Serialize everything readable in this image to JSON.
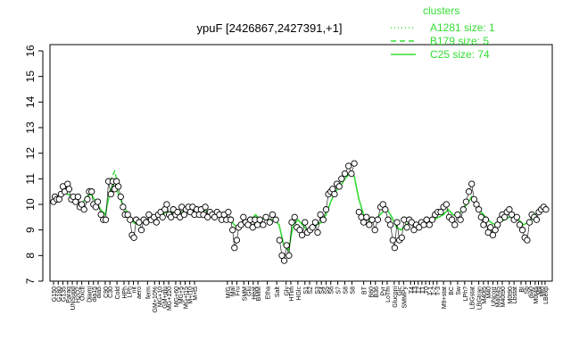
{
  "chart_data": {
    "type": "line",
    "title": "ypuF [2426867,2427391,+1]",
    "ylim": [
      7,
      16
    ],
    "yticks": [
      7,
      8,
      9,
      10,
      11,
      12,
      13,
      14,
      15,
      16
    ],
    "grid": false,
    "legend": {
      "title": "clusters",
      "placement": "top-right",
      "entries": [
        {
          "label": "A1281 size: 1",
          "style": "dotted"
        },
        {
          "label": "B179 size: 5",
          "style": "dashed"
        },
        {
          "label": "C25 size: 74",
          "style": "solid"
        }
      ]
    },
    "colors": {
      "line": "#33dd33",
      "points": "#000000",
      "fill": "#ffffff"
    },
    "x_labels": [
      {
        "text": "G150",
        "x": 1
      },
      {
        "text": "G180",
        "x": 2
      },
      {
        "text": "G135",
        "x": 3
      },
      {
        "text": "Paraq",
        "x": 4
      },
      {
        "text": "UNSupp",
        "x": 5
      },
      {
        "text": "H2O2",
        "x": 6
      },
      {
        "text": "Oxctl",
        "x": 7
      },
      {
        "text": "Diami",
        "x": 8.5
      },
      {
        "text": "dia15",
        "x": 9.5
      },
      {
        "text": "dia5",
        "x": 10.5
      },
      {
        "text": "C90",
        "x": 12
      },
      {
        "text": "C30",
        "x": 13
      },
      {
        "text": "Cold",
        "x": 14.5
      },
      {
        "text": "HPh",
        "x": 16
      },
      {
        "text": "LPh",
        "x": 17
      },
      {
        "text": "nit",
        "x": 18
      },
      {
        "text": "aero",
        "x": 19
      },
      {
        "text": "ferm",
        "x": 21
      },
      {
        "text": "GM+10%",
        "x": 22.5
      },
      {
        "text": "MG+10",
        "x": 23.5
      },
      {
        "text": "GM+glu",
        "x": 24.5
      },
      {
        "text": "MG+120",
        "x": 25.5
      },
      {
        "text": "MG+60",
        "x": 27
      },
      {
        "text": "MG+5",
        "x": 28
      },
      {
        "text": "MG+t15",
        "x": 29
      },
      {
        "text": "M+t10",
        "x": 30
      },
      {
        "text": "M+t5",
        "x": 31
      },
      {
        "text": "M/G",
        "x": 38
      },
      {
        "text": "Mal",
        "x": 39
      },
      {
        "text": "Fru",
        "x": 40
      },
      {
        "text": "SMM",
        "x": 41.5
      },
      {
        "text": "Glu",
        "x": 42.5
      },
      {
        "text": "Heat",
        "x": 43.5
      },
      {
        "text": "BMM",
        "x": 44.5
      },
      {
        "text": "Etha",
        "x": 46.5
      },
      {
        "text": "Salt",
        "x": 48.5
      },
      {
        "text": "Gly",
        "x": 50.5
      },
      {
        "text": "HTim",
        "x": 51.5
      },
      {
        "text": "HGlc",
        "x": 53
      },
      {
        "text": "S1",
        "x": 54.5
      },
      {
        "text": "S2",
        "x": 55.5
      },
      {
        "text": "S3",
        "x": 57
      },
      {
        "text": "S4",
        "x": 58
      },
      {
        "text": "S5",
        "x": 59
      },
      {
        "text": "S6",
        "x": 60
      },
      {
        "text": "S7",
        "x": 61.5
      },
      {
        "text": "S8",
        "x": 63
      },
      {
        "text": "S8",
        "x": 64.5
      },
      {
        "text": "BT",
        "x": 67
      },
      {
        "text": "B60",
        "x": 68.5
      },
      {
        "text": "B36",
        "x": 69.5
      },
      {
        "text": "Pyr",
        "x": 71
      },
      {
        "text": "LoTm",
        "x": 72
      },
      {
        "text": "Gluconi",
        "x": 73.5
      },
      {
        "text": "Glc",
        "x": 74.5
      },
      {
        "text": "SMMPy",
        "x": 75.5
      },
      {
        "text": "T4",
        "x": 77
      },
      {
        "text": "T3",
        "x": 77.8
      },
      {
        "text": "T2",
        "x": 78.6
      },
      {
        "text": "T1",
        "x": 79.4
      },
      {
        "text": "T0",
        "x": 80.2
      },
      {
        "text": "T-1",
        "x": 81
      },
      {
        "text": "T-2",
        "x": 81.8
      },
      {
        "text": "T-3",
        "x": 82.6
      },
      {
        "text": "M9+stat",
        "x": 84
      },
      {
        "text": "BC",
        "x": 85.5
      },
      {
        "text": "Sw",
        "x": 87
      },
      {
        "text": "LPh?",
        "x": 88.5
      },
      {
        "text": "LBGstat",
        "x": 90
      },
      {
        "text": "LBGtran",
        "x": 91.5
      },
      {
        "text": "M40t5",
        "x": 92.5
      },
      {
        "text": "M40",
        "x": 93.5
      },
      {
        "text": "UNcorr",
        "x": 94.5
      },
      {
        "text": "M40t45",
        "x": 95.5
      },
      {
        "text": "M40t90",
        "x": 96.5
      },
      {
        "text": "M0t90",
        "x": 98
      },
      {
        "text": "Lbstat",
        "x": 99
      },
      {
        "text": "BI",
        "x": 100.5
      },
      {
        "text": "Sb",
        "x": 101.5
      },
      {
        "text": "dia0",
        "x": 102.5
      },
      {
        "text": "M0t45",
        "x": 103.5
      },
      {
        "text": "M9",
        "x": 104.2
      },
      {
        "text": "Mt0",
        "x": 104.9
      },
      {
        "text": "LBexp",
        "x": 105.6
      }
    ],
    "cluster_line": [
      [
        1,
        10.2
      ],
      [
        2,
        10.3
      ],
      [
        3,
        10.5
      ],
      [
        4,
        10.4
      ],
      [
        5,
        10.3
      ],
      [
        6,
        10.1
      ],
      [
        7,
        10.0
      ],
      [
        8,
        10.3
      ],
      [
        9,
        10.4
      ],
      [
        10,
        10.1
      ],
      [
        11,
        9.8
      ],
      [
        12,
        9.6
      ],
      [
        13,
        10.5
      ],
      [
        14,
        10.9
      ],
      [
        15,
        10.3
      ],
      [
        16,
        9.9
      ],
      [
        17,
        9.6
      ],
      [
        18,
        9.3
      ],
      [
        19,
        9.2
      ],
      [
        20,
        9.3
      ],
      [
        21,
        9.4
      ],
      [
        22,
        9.5
      ],
      [
        23,
        9.5
      ],
      [
        24,
        9.6
      ],
      [
        25,
        9.7
      ],
      [
        26,
        9.7
      ],
      [
        27,
        9.6
      ],
      [
        28,
        9.7
      ],
      [
        29,
        9.7
      ],
      [
        30,
        9.7
      ],
      [
        31,
        9.7
      ],
      [
        32,
        9.7
      ],
      [
        33,
        9.8
      ],
      [
        34,
        9.7
      ],
      [
        35,
        9.6
      ],
      [
        36,
        9.6
      ],
      [
        37,
        9.5
      ],
      [
        38,
        9.4
      ],
      [
        39,
        9.3
      ],
      [
        40,
        9.1
      ],
      [
        41,
        9.3
      ],
      [
        42,
        9.3
      ],
      [
        43,
        9.4
      ],
      [
        44,
        9.6
      ],
      [
        45,
        9.4
      ],
      [
        46,
        9.5
      ],
      [
        47,
        9.4
      ],
      [
        48,
        9.4
      ],
      [
        49,
        9.2
      ],
      [
        50,
        8.4
      ],
      [
        51,
        8.2
      ],
      [
        52,
        9.2
      ],
      [
        53,
        9.4
      ],
      [
        54,
        9.2
      ],
      [
        55,
        9.0
      ],
      [
        56,
        9.1
      ],
      [
        57,
        9.2
      ],
      [
        58,
        9.3
      ],
      [
        59,
        9.6
      ],
      [
        60,
        10.1
      ],
      [
        61,
        10.5
      ],
      [
        62,
        10.7
      ],
      [
        63,
        11.0
      ],
      [
        64,
        11.2
      ],
      [
        65,
        11.1
      ],
      [
        66,
        10.2
      ],
      [
        67,
        9.6
      ],
      [
        68,
        9.4
      ],
      [
        69,
        9.3
      ],
      [
        70,
        9.5
      ],
      [
        71,
        9.7
      ],
      [
        72,
        9.8
      ],
      [
        73,
        9.5
      ],
      [
        74,
        9.1
      ],
      [
        75,
        9.0
      ],
      [
        76,
        9.2
      ],
      [
        77,
        9.3
      ],
      [
        78,
        9.2
      ],
      [
        79,
        9.2
      ],
      [
        80,
        9.3
      ],
      [
        81,
        9.3
      ],
      [
        82,
        9.4
      ],
      [
        83,
        9.5
      ],
      [
        84,
        9.6
      ],
      [
        85,
        9.8
      ],
      [
        86,
        9.6
      ],
      [
        87,
        9.5
      ],
      [
        88,
        9.8
      ],
      [
        89,
        10.0
      ],
      [
        90,
        10.3
      ],
      [
        91,
        10.0
      ],
      [
        92,
        9.7
      ],
      [
        93,
        9.5
      ],
      [
        94,
        9.3
      ],
      [
        95,
        9.2
      ],
      [
        96,
        9.3
      ],
      [
        97,
        9.4
      ],
      [
        98,
        9.5
      ],
      [
        99,
        9.6
      ],
      [
        100,
        9.4
      ],
      [
        101,
        9.2
      ],
      [
        102,
        9.3
      ],
      [
        103,
        9.5
      ],
      [
        104,
        9.7
      ],
      [
        105,
        9.8
      ],
      [
        106,
        9.9
      ]
    ],
    "cluster_line_b": [
      [
        13,
        10.9
      ],
      [
        14,
        11.3
      ],
      [
        15,
        10.6
      ]
    ],
    "points": [
      [
        1,
        10.1
      ],
      [
        1.3,
        10.3
      ],
      [
        1.7,
        10.2
      ],
      [
        2.2,
        10.2
      ],
      [
        2.6,
        10.4
      ],
      [
        3,
        10.7
      ],
      [
        3.4,
        10.5
      ],
      [
        4,
        10.8
      ],
      [
        4.3,
        10.6
      ],
      [
        4.8,
        10.2
      ],
      [
        5.2,
        10.3
      ],
      [
        5.7,
        10.1
      ],
      [
        6.2,
        10.3
      ],
      [
        6.6,
        9.9
      ],
      [
        7,
        10.0
      ],
      [
        7.5,
        9.8
      ],
      [
        8.2,
        10.2
      ],
      [
        8.6,
        10.5
      ],
      [
        9.1,
        10.5
      ],
      [
        9.5,
        10.0
      ],
      [
        10,
        9.9
      ],
      [
        10.4,
        10.1
      ],
      [
        11.1,
        9.6
      ],
      [
        11.6,
        9.4
      ],
      [
        12.1,
        9.4
      ],
      [
        12.7,
        10.9
      ],
      [
        13.2,
        10.4
      ],
      [
        13.6,
        10.9
      ],
      [
        14,
        10.6
      ],
      [
        14.4,
        10.9
      ],
      [
        14.8,
        10.7
      ],
      [
        15.3,
        10.3
      ],
      [
        15.8,
        9.9
      ],
      [
        16.2,
        9.6
      ],
      [
        16.8,
        9.6
      ],
      [
        17.3,
        9.4
      ],
      [
        17.7,
        8.8
      ],
      [
        18.1,
        8.7
      ],
      [
        18.6,
        9.4
      ],
      [
        19.2,
        9.3
      ],
      [
        19.7,
        9.0
      ],
      [
        20.2,
        9.4
      ],
      [
        20.7,
        9.3
      ],
      [
        21.3,
        9.6
      ],
      [
        21.8,
        9.4
      ],
      [
        22.4,
        9.5
      ],
      [
        22.9,
        9.3
      ],
      [
        23.3,
        9.6
      ],
      [
        23.8,
        9.7
      ],
      [
        24.2,
        9.5
      ],
      [
        24.7,
        9.8
      ],
      [
        25.1,
        10.0
      ],
      [
        25.6,
        9.6
      ],
      [
        26,
        9.5
      ],
      [
        26.5,
        9.8
      ],
      [
        27,
        9.6
      ],
      [
        27.4,
        9.7
      ],
      [
        27.9,
        9.5
      ],
      [
        28.3,
        9.9
      ],
      [
        28.8,
        9.6
      ],
      [
        29.2,
        9.8
      ],
      [
        29.7,
        9.9
      ],
      [
        30.1,
        9.7
      ],
      [
        30.6,
        9.9
      ],
      [
        31,
        9.6
      ],
      [
        31.5,
        9.8
      ],
      [
        32,
        9.6
      ],
      [
        32.4,
        9.8
      ],
      [
        32.9,
        9.6
      ],
      [
        33.3,
        9.9
      ],
      [
        33.8,
        9.5
      ],
      [
        34.3,
        9.7
      ],
      [
        34.8,
        9.6
      ],
      [
        35.3,
        9.5
      ],
      [
        35.8,
        9.7
      ],
      [
        36.3,
        9.6
      ],
      [
        36.8,
        9.4
      ],
      [
        37.3,
        9.6
      ],
      [
        37.8,
        9.4
      ],
      [
        38.2,
        9.7
      ],
      [
        38.7,
        9.4
      ],
      [
        39.1,
        9.0
      ],
      [
        39.5,
        8.3
      ],
      [
        40,
        8.6
      ],
      [
        40.4,
        9.1
      ],
      [
        40.9,
        9.2
      ],
      [
        41.4,
        9.5
      ],
      [
        41.9,
        9.3
      ],
      [
        42.4,
        9.2
      ],
      [
        42.9,
        9.4
      ],
      [
        43.4,
        9.1
      ],
      [
        43.9,
        9.4
      ],
      [
        44.4,
        9.2
      ],
      [
        44.9,
        9.4
      ],
      [
        45.6,
        9.2
      ],
      [
        46.2,
        9.5
      ],
      [
        47,
        9.3
      ],
      [
        47.6,
        9.6
      ],
      [
        48.3,
        9.4
      ],
      [
        49.1,
        8.6
      ],
      [
        49.6,
        8.0
      ],
      [
        50.1,
        7.8
      ],
      [
        50.6,
        8.4
      ],
      [
        51.1,
        8.0
      ],
      [
        51.7,
        9.3
      ],
      [
        52.3,
        9.5
      ],
      [
        52.8,
        9.1
      ],
      [
        53.4,
        9.0
      ],
      [
        53.9,
        8.8
      ],
      [
        54.5,
        9.3
      ],
      [
        55,
        8.9
      ],
      [
        55.6,
        9.0
      ],
      [
        56.1,
        9.1
      ],
      [
        56.7,
        9.3
      ],
      [
        57.2,
        8.9
      ],
      [
        57.8,
        9.6
      ],
      [
        58.4,
        9.4
      ],
      [
        59,
        9.8
      ],
      [
        59.5,
        10.4
      ],
      [
        60,
        10.5
      ],
      [
        60.4,
        10.6
      ],
      [
        60.8,
        10.4
      ],
      [
        61.3,
        10.8
      ],
      [
        61.8,
        10.7
      ],
      [
        62.3,
        11.0
      ],
      [
        63,
        11.2
      ],
      [
        63.8,
        11.5
      ],
      [
        64.4,
        11.2
      ],
      [
        65,
        11.6
      ],
      [
        66,
        9.7
      ],
      [
        66.5,
        9.5
      ],
      [
        67,
        9.3
      ],
      [
        67.6,
        9.5
      ],
      [
        68.2,
        9.2
      ],
      [
        68.8,
        9.4
      ],
      [
        69.4,
        9.0
      ],
      [
        70,
        9.4
      ],
      [
        70.6,
        9.9
      ],
      [
        71.1,
        10.0
      ],
      [
        71.6,
        9.8
      ],
      [
        72.2,
        9.4
      ],
      [
        72.7,
        9.2
      ],
      [
        73.2,
        8.6
      ],
      [
        73.6,
        8.3
      ],
      [
        74.1,
        9.3
      ],
      [
        74.6,
        8.6
      ],
      [
        75.1,
        8.7
      ],
      [
        75.6,
        9.4
      ],
      [
        76.2,
        9.1
      ],
      [
        76.7,
        9.4
      ],
      [
        77.2,
        9.3
      ],
      [
        77.7,
        9.0
      ],
      [
        78.2,
        9.2
      ],
      [
        78.8,
        9.1
      ],
      [
        79.3,
        9.3
      ],
      [
        79.8,
        9.2
      ],
      [
        80.4,
        9.4
      ],
      [
        81,
        9.2
      ],
      [
        81.6,
        9.4
      ],
      [
        82.2,
        9.6
      ],
      [
        82.8,
        9.7
      ],
      [
        83.4,
        9.7
      ],
      [
        84,
        9.9
      ],
      [
        84.6,
        10.0
      ],
      [
        85.2,
        9.5
      ],
      [
        85.8,
        9.4
      ],
      [
        86.4,
        9.2
      ],
      [
        87,
        9.6
      ],
      [
        87.6,
        9.4
      ],
      [
        88.2,
        9.8
      ],
      [
        88.8,
        10.1
      ],
      [
        89.4,
        10.5
      ],
      [
        90,
        10.8
      ],
      [
        90.5,
        10.2
      ],
      [
        91,
        10.0
      ],
      [
        91.5,
        9.8
      ],
      [
        92,
        9.5
      ],
      [
        92.5,
        9.2
      ],
      [
        93,
        9.4
      ],
      [
        93.5,
        8.9
      ],
      [
        94,
        9.1
      ],
      [
        94.5,
        8.8
      ],
      [
        95,
        9.0
      ],
      [
        95.5,
        9.2
      ],
      [
        96,
        9.4
      ],
      [
        96.5,
        9.6
      ],
      [
        97,
        9.5
      ],
      [
        97.5,
        9.7
      ],
      [
        98,
        9.8
      ],
      [
        98.5,
        9.6
      ],
      [
        99,
        9.4
      ],
      [
        99.6,
        9.5
      ],
      [
        100.2,
        9.2
      ],
      [
        100.8,
        9.0
      ],
      [
        101.3,
        8.7
      ],
      [
        101.8,
        8.6
      ],
      [
        102.3,
        9.3
      ],
      [
        102.8,
        9.6
      ],
      [
        103.3,
        9.5
      ],
      [
        103.8,
        9.4
      ],
      [
        104.3,
        9.7
      ],
      [
        104.8,
        9.8
      ],
      [
        105.3,
        9.9
      ],
      [
        105.8,
        9.8
      ]
    ]
  }
}
